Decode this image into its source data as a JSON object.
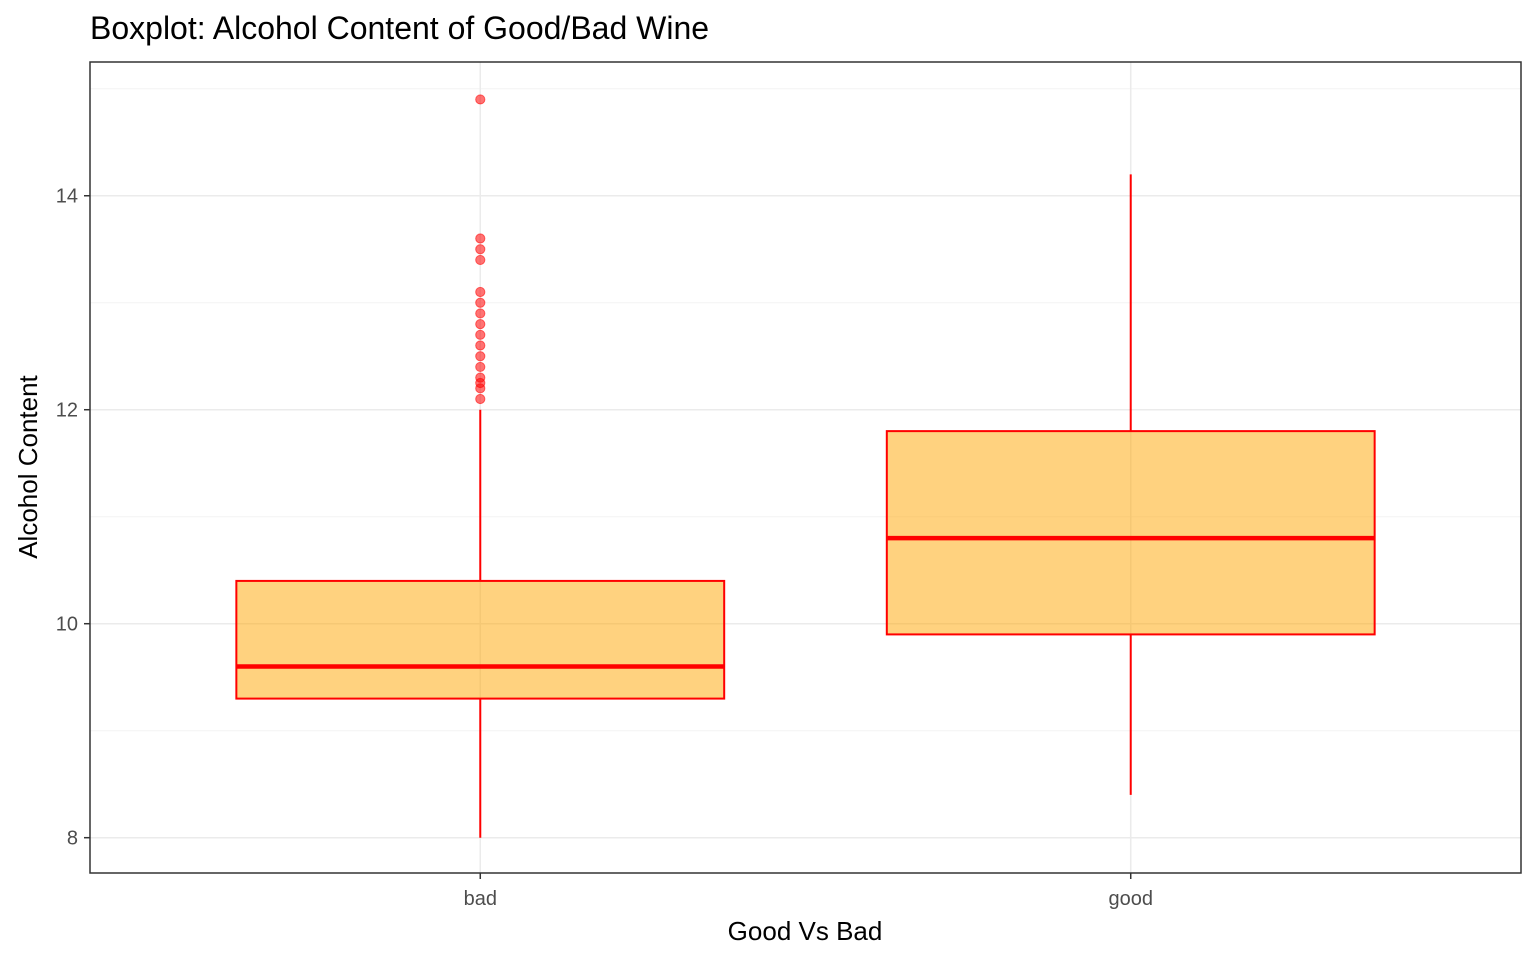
{
  "chart_data": {
    "type": "boxplot",
    "title": "Boxplot: Alcohol Content of Good/Bad Wine",
    "xlabel": "Good Vs Bad",
    "ylabel": "Alcohol Content",
    "categories": [
      "bad",
      "good"
    ],
    "ylim": [
      7.67,
      15.25
    ],
    "y_ticks": [
      8,
      10,
      12,
      14
    ],
    "grid": true,
    "colors": {
      "fill": "#ffa500",
      "fill_opacity": 0.5,
      "stroke": "#ff0000",
      "grid_major": "#ebebeb",
      "grid_minor": "#f4f4f4"
    },
    "boxes": [
      {
        "category": "bad",
        "whisker_low": 8.0,
        "q1": 9.3,
        "median": 9.6,
        "q3": 10.4,
        "whisker_high": 12.0,
        "outliers": [
          12.1,
          12.2,
          12.25,
          12.3,
          12.4,
          12.5,
          12.6,
          12.7,
          12.8,
          12.9,
          13.0,
          13.1,
          13.4,
          13.5,
          13.6,
          14.9
        ]
      },
      {
        "category": "good",
        "whisker_low": 8.4,
        "q1": 9.9,
        "median": 10.8,
        "q3": 11.8,
        "whisker_high": 14.2,
        "outliers": []
      }
    ]
  }
}
